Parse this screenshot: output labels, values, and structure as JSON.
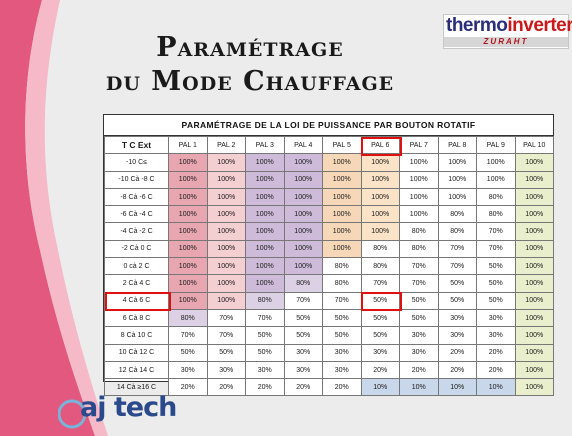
{
  "page": {
    "title_line1": "Paramétrage",
    "title_line2": "du Mode Chauffage"
  },
  "brand": {
    "name_part1": "thermo",
    "name_part2": "inverter",
    "name_mark": "®",
    "sub": "ZURAHT"
  },
  "table": {
    "title": "Paramétrage de la loi de puissance par bouton rotatif",
    "first_header": "T C Ext",
    "headers": [
      "PAL 1",
      "PAL 2",
      "PAL 3",
      "PAL 4",
      "PAL 5",
      "PAL 6",
      "PAL 7",
      "PAL 8",
      "PAL 9",
      "PAL 10"
    ],
    "rows": [
      {
        "label": "-10 C≤",
        "values": [
          "100%",
          "100%",
          "100%",
          "100%",
          "100%",
          "100%",
          "100%",
          "100%",
          "100%",
          "100%"
        ]
      },
      {
        "label": "-10 Cà -8 C",
        "values": [
          "100%",
          "100%",
          "100%",
          "100%",
          "100%",
          "100%",
          "100%",
          "100%",
          "100%",
          "100%"
        ]
      },
      {
        "label": "-8 Cà -6 C",
        "values": [
          "100%",
          "100%",
          "100%",
          "100%",
          "100%",
          "100%",
          "100%",
          "100%",
          "80%",
          "100%"
        ]
      },
      {
        "label": "-6 Cà -4 C",
        "values": [
          "100%",
          "100%",
          "100%",
          "100%",
          "100%",
          "100%",
          "100%",
          "80%",
          "80%",
          "100%"
        ]
      },
      {
        "label": "-4 Cà -2 C",
        "values": [
          "100%",
          "100%",
          "100%",
          "100%",
          "100%",
          "100%",
          "80%",
          "80%",
          "70%",
          "100%"
        ]
      },
      {
        "label": "-2 Cà 0 C",
        "values": [
          "100%",
          "100%",
          "100%",
          "100%",
          "100%",
          "80%",
          "80%",
          "70%",
          "70%",
          "100%"
        ]
      },
      {
        "label": "0 cà 2 C",
        "values": [
          "100%",
          "100%",
          "100%",
          "100%",
          "80%",
          "80%",
          "70%",
          "70%",
          "50%",
          "100%"
        ]
      },
      {
        "label": "2 Cà 4 C",
        "values": [
          "100%",
          "100%",
          "100%",
          "80%",
          "80%",
          "70%",
          "70%",
          "50%",
          "50%",
          "100%"
        ]
      },
      {
        "label": "4 Cà 6 C",
        "values": [
          "100%",
          "100%",
          "80%",
          "70%",
          "70%",
          "50%",
          "50%",
          "50%",
          "50%",
          "100%"
        ]
      },
      {
        "label": "6 Cà 8 C",
        "values": [
          "80%",
          "70%",
          "70%",
          "50%",
          "50%",
          "50%",
          "50%",
          "30%",
          "30%",
          "100%"
        ]
      },
      {
        "label": "8 Cà 10 C",
        "values": [
          "70%",
          "70%",
          "50%",
          "50%",
          "50%",
          "50%",
          "30%",
          "30%",
          "30%",
          "100%"
        ]
      },
      {
        "label": "10 Cà 12 C",
        "values": [
          "50%",
          "50%",
          "50%",
          "30%",
          "30%",
          "30%",
          "30%",
          "20%",
          "20%",
          "100%"
        ]
      },
      {
        "label": "12 Cà 14 C",
        "values": [
          "30%",
          "30%",
          "30%",
          "30%",
          "30%",
          "20%",
          "20%",
          "20%",
          "20%",
          "100%"
        ]
      },
      {
        "label": "14 Cà ≥16 C",
        "values": [
          "20%",
          "20%",
          "20%",
          "20%",
          "20%",
          "10%",
          "10%",
          "10%",
          "10%",
          "100%"
        ]
      }
    ],
    "highlight_column": "PAL 6",
    "highlight_row": "4 Cà 6 C",
    "colors": {
      "100%": "#f4cfd1",
      "80%": "#dcd0e4",
      "70%": "#ffffff",
      "50%": "#ffffff",
      "30%": "#ffffff",
      "20%": "#ffffff",
      "10%": "#c9d7ea",
      "pal1_100": "#e8a7b0",
      "pal3_100": "#cdbbd9",
      "pal5_100": "#f6d8b8",
      "pal6_100": "#fae3c6",
      "pal10": "#e9efcc",
      "highlight": "#e01010"
    }
  },
  "footer": {
    "logo_text": "aj tech"
  }
}
